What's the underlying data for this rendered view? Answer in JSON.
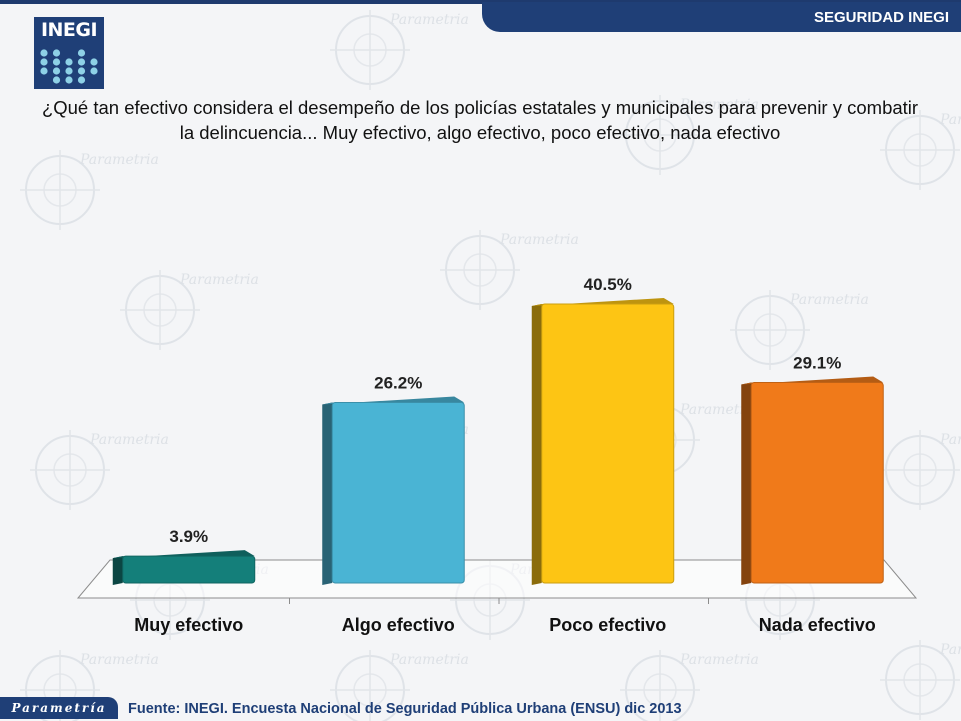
{
  "header": {
    "title": "SEGURIDAD INEGI",
    "logo_text": "INEGI"
  },
  "question": "¿Qué tan efectivo considera el desempeño de los policías estatales y municipales para prevenir y combatir la delincuencia... Muy efectivo, algo efectivo, poco efectivo, nada efectivo",
  "colors": {
    "header": "#1f3f77",
    "bars": [
      "#147f7a",
      "#4ab4d4",
      "#fdc514",
      "#f07a1a"
    ]
  },
  "watermark": {
    "word": "Parametria",
    "icon": "watermark-circle-xyz"
  },
  "chart_data": {
    "type": "bar",
    "categories": [
      "Muy efectivo",
      "Algo efectivo",
      "Poco efectivo",
      "Nada efectivo"
    ],
    "values": [
      3.9,
      26.2,
      40.5,
      29.1
    ],
    "value_labels": [
      "3.9%",
      "26.2%",
      "40.5%",
      "29.1%"
    ],
    "title": "",
    "xlabel": "",
    "ylabel": "",
    "ylim": [
      0,
      45
    ],
    "grid": false,
    "legend": "none"
  },
  "footer": {
    "brand": "Parametría",
    "source": "Fuente: INEGI. Encuesta Nacional de Seguridad Pública Urbana (ENSU) dic 2013"
  }
}
